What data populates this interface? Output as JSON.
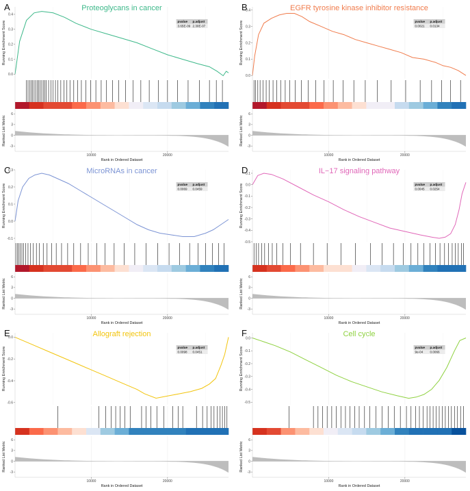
{
  "common": {
    "es_ylabel": "Running Enrichment Score",
    "metric_ylabel": "Ranked List Metric",
    "xlabel": "Rank in Ordered Dataset",
    "x_ticks": [
      "10000",
      "20000"
    ],
    "metric_ticks": [
      "6",
      "3",
      "0",
      "-3"
    ],
    "x_range": [
      0,
      28000
    ],
    "metric_range": [
      -4.5,
      7
    ],
    "stat_headers": [
      "pvalue",
      "p.adjust"
    ],
    "colors": {
      "red_dark": "#b2182b",
      "red": "#e34a33",
      "salmon": "#fc9272",
      "light": "#fde0d2",
      "pale_blue": "#dbe6f4",
      "blue_light": "#9ecae1",
      "blue": "#3182bd",
      "blue_dark": "#08519c",
      "metric_fill": "#bdbdbd"
    }
  },
  "chart_data": [
    {
      "type": "line",
      "letter": "A",
      "title": "Proteoglycans in cancer",
      "color": "#3cb889",
      "pvalue": "3.65E-09",
      "p_adjust": "2.30E-07",
      "ylim": [
        -0.03,
        0.45
      ],
      "y_ticks": [
        0.0,
        0.1,
        0.2,
        0.3,
        0.4
      ],
      "y_tick_labels": [
        "0.0",
        "0.1",
        "0.2",
        "0.3",
        "0.4"
      ],
      "x": [
        0,
        600,
        1500,
        2500,
        3500,
        5000,
        6500,
        8000,
        10000,
        12000,
        14000,
        16000,
        18000,
        20000,
        22000,
        24000,
        25500,
        26500,
        27300,
        27700,
        28000
      ],
      "y": [
        0.0,
        0.22,
        0.36,
        0.41,
        0.42,
        0.41,
        0.38,
        0.34,
        0.3,
        0.27,
        0.24,
        0.21,
        0.17,
        0.13,
        0.1,
        0.07,
        0.05,
        0.02,
        -0.01,
        0.02,
        0.01
      ],
      "heat": [
        "#b2182b",
        "#d6321f",
        "#e34a33",
        "#e34a33",
        "#fb6a4a",
        "#fc9272",
        "#fdbba0",
        "#fde0d2",
        "#f1eef6",
        "#dbe6f4",
        "#c6dbef",
        "#9ecae1",
        "#6baed6",
        "#3182bd",
        "#2171b5"
      ],
      "hits": [
        1500,
        1700,
        1900,
        2100,
        2300,
        2500,
        2700,
        2900,
        3100,
        3300,
        3500,
        3700,
        3900,
        4100,
        4400,
        4700,
        5000,
        5300,
        5600,
        6000,
        6400,
        6800,
        7200,
        7700,
        8200,
        8700,
        9300,
        9900,
        10600,
        11300,
        12000,
        12800,
        13600,
        14500,
        15500,
        16500,
        17600,
        18800,
        20000,
        21300,
        22700,
        24200,
        25500,
        26400,
        27200
      ]
    },
    {
      "type": "line",
      "letter": "B",
      "title": "EGFR tyrosine kinase inhibitor resistance",
      "color": "#f07b4b",
      "pvalue": "0.0021",
      "p_adjust": "0.0134",
      "ylim": [
        -0.02,
        0.42
      ],
      "y_ticks": [
        0.0,
        0.1,
        0.2,
        0.3,
        0.4
      ],
      "y_tick_labels": [
        "0.0",
        "0.1",
        "0.2",
        "0.3",
        "0.4"
      ],
      "x": [
        0,
        300,
        800,
        1500,
        2500,
        3500,
        4500,
        5500,
        6500,
        7500,
        9000,
        10500,
        12000,
        13500,
        15000,
        16500,
        18000,
        19500,
        21000,
        22500,
        24000,
        25000,
        26000,
        27000,
        28000
      ],
      "y": [
        0.0,
        0.12,
        0.25,
        0.32,
        0.35,
        0.37,
        0.38,
        0.38,
        0.36,
        0.33,
        0.3,
        0.27,
        0.25,
        0.22,
        0.2,
        0.18,
        0.16,
        0.14,
        0.11,
        0.1,
        0.08,
        0.06,
        0.05,
        0.03,
        0.0
      ],
      "heat": [
        "#b2182b",
        "#d6321f",
        "#e34a33",
        "#e34a33",
        "#fb6a4a",
        "#fc9272",
        "#fdbba0",
        "#fde0d2",
        "#f1eef6",
        "#f1eef6",
        "#c6dbef",
        "#9ecae1",
        "#6baed6",
        "#3182bd",
        "#2171b5"
      ],
      "hits": [
        200,
        400,
        700,
        1000,
        1400,
        1800,
        2200,
        2700,
        3200,
        3700,
        4300,
        4900,
        5600,
        6400,
        7300,
        8300,
        9400,
        10600,
        11900,
        13300,
        14800,
        16400,
        18200,
        20100,
        22000,
        23500,
        24800,
        26000,
        27300
      ]
    },
    {
      "type": "line",
      "letter": "C",
      "title": "MicroRNAs in cancer",
      "color": "#7b93d4",
      "pvalue": "0.0069",
      "p_adjust": "0.0459",
      "ylim": [
        -0.12,
        0.3
      ],
      "y_ticks": [
        -0.1,
        0.0,
        0.1,
        0.2,
        0.3
      ],
      "y_tick_labels": [
        "-0.1",
        "0.0",
        "0.1",
        "0.2",
        "0.3"
      ],
      "x": [
        0,
        400,
        1000,
        1800,
        2600,
        3500,
        4500,
        5500,
        7000,
        8500,
        10000,
        11500,
        13000,
        14500,
        16000,
        17500,
        19000,
        20500,
        22000,
        23500,
        25000,
        26000,
        27000,
        28000
      ],
      "y": [
        0.0,
        0.12,
        0.2,
        0.25,
        0.27,
        0.28,
        0.27,
        0.25,
        0.22,
        0.18,
        0.14,
        0.1,
        0.06,
        0.02,
        -0.02,
        -0.05,
        -0.07,
        -0.08,
        -0.09,
        -0.09,
        -0.07,
        -0.05,
        -0.02,
        0.01
      ],
      "heat": [
        "#b2182b",
        "#d6321f",
        "#e34a33",
        "#e34a33",
        "#fb6a4a",
        "#fc9272",
        "#fdbba0",
        "#fde0d2",
        "#f1eef6",
        "#dbe6f4",
        "#c6dbef",
        "#9ecae1",
        "#6baed6",
        "#3182bd",
        "#2171b5"
      ],
      "hits": [
        100,
        300,
        500,
        700,
        900,
        1100,
        1400,
        1700,
        2000,
        2400,
        2800,
        3200,
        3700,
        4200,
        4800,
        5400,
        6100,
        6900,
        7700,
        8600,
        9600,
        10700,
        11800,
        13000,
        14300,
        15700,
        17200,
        18700,
        20200,
        21600,
        22900,
        24000,
        25000,
        25900,
        26700,
        27400
      ]
    },
    {
      "type": "line",
      "letter": "D",
      "title": "IL−17 signaling pathway",
      "color": "#e066b8",
      "pvalue": "0.0045",
      "p_adjust": "0.0254",
      "ylim": [
        -0.5,
        0.13
      ],
      "y_ticks": [
        -0.5,
        -0.4,
        -0.3,
        -0.2,
        -0.1,
        0.0,
        0.1
      ],
      "y_tick_labels": [
        "-0.5",
        "-0.4",
        "-0.3",
        "-0.2",
        "-0.1",
        "0.0",
        "0.1"
      ],
      "x": [
        0,
        700,
        1500,
        2500,
        4000,
        6000,
        8000,
        10000,
        12000,
        14000,
        16000,
        18000,
        20000,
        22000,
        23500,
        24500,
        25300,
        26000,
        26600,
        27100,
        27500,
        28000
      ],
      "y": [
        0.0,
        0.08,
        0.1,
        0.09,
        0.05,
        -0.02,
        -0.09,
        -0.15,
        -0.22,
        -0.28,
        -0.33,
        -0.38,
        -0.41,
        -0.44,
        -0.46,
        -0.47,
        -0.46,
        -0.43,
        -0.35,
        -0.22,
        -0.08,
        0.02
      ],
      "heat": [
        "#d6321f",
        "#e34a33",
        "#fb6a4a",
        "#fc9272",
        "#fdbba0",
        "#fde0d2",
        "#fde0d2",
        "#f1eef6",
        "#dbe6f4",
        "#c6dbef",
        "#9ecae1",
        "#6baed6",
        "#3182bd",
        "#2171b5",
        "#2171b5"
      ],
      "hits": [
        200,
        500,
        800,
        1200,
        1600,
        2100,
        2600,
        3200,
        4000,
        5000,
        6300,
        8000,
        9800,
        11600,
        13500,
        15500,
        17000,
        18500,
        19800,
        20800,
        21700,
        22500,
        23300,
        24000,
        24600,
        25200,
        25700,
        26200,
        26600,
        27000,
        27400,
        27700
      ]
    },
    {
      "type": "line",
      "letter": "E",
      "title": "Allograft rejection",
      "color": "#f2c40c",
      "pvalue": "0.0098",
      "p_adjust": "0.0451",
      "ylim": [
        -0.62,
        0.04
      ],
      "y_ticks": [
        -0.6,
        -0.4,
        -0.2,
        0.0
      ],
      "y_tick_labels": [
        "-0.6",
        "-0.4",
        "-0.2",
        "0.0"
      ],
      "x": [
        0,
        2000,
        4000,
        6000,
        8000,
        10000,
        12000,
        14000,
        16000,
        17000,
        18500,
        20000,
        21500,
        23000,
        24500,
        25500,
        26300,
        27000,
        27500,
        28000
      ],
      "y": [
        0.0,
        -0.06,
        -0.12,
        -0.18,
        -0.24,
        -0.3,
        -0.36,
        -0.42,
        -0.48,
        -0.52,
        -0.56,
        -0.54,
        -0.52,
        -0.5,
        -0.47,
        -0.43,
        -0.38,
        -0.26,
        -0.16,
        0.0
      ],
      "heat": [
        "#d6321f",
        "#fb6a4a",
        "#fc9272",
        "#fdbba0",
        "#fde0d2",
        "#dbe6f4",
        "#9ecae1",
        "#6baed6",
        "#3182bd",
        "#3182bd",
        "#3182bd",
        "#3182bd",
        "#2171b5",
        "#2171b5",
        "#2171b5"
      ],
      "hits": [
        5600,
        11000,
        11900,
        12600,
        13200,
        13800,
        14400,
        15100,
        16600,
        17200,
        17800,
        18600,
        19500,
        20700,
        21400,
        22000,
        23800,
        24600,
        25200,
        25700,
        26100,
        26500,
        26900,
        27200,
        27500,
        27800
      ]
    },
    {
      "type": "line",
      "letter": "F",
      "title": "Cell cycle",
      "color": "#8ed13f",
      "pvalue": "9e-04",
      "p_adjust": "0.0066",
      "ylim": [
        -0.52,
        0.04
      ],
      "y_ticks": [
        -0.5,
        -0.4,
        -0.3,
        -0.2,
        -0.1,
        0.0
      ],
      "y_tick_labels": [
        "-0.5",
        "-0.4",
        "-0.3",
        "-0.2",
        "-0.1",
        "0.0"
      ],
      "x": [
        0,
        1500,
        3000,
        5000,
        7000,
        9000,
        11000,
        13000,
        15000,
        17000,
        19000,
        20500,
        21500,
        22500,
        23500,
        24500,
        25500,
        26500,
        27200,
        28000
      ],
      "y": [
        0.0,
        -0.03,
        -0.06,
        -0.11,
        -0.17,
        -0.23,
        -0.29,
        -0.34,
        -0.38,
        -0.42,
        -0.45,
        -0.47,
        -0.46,
        -0.44,
        -0.4,
        -0.33,
        -0.23,
        -0.1,
        -0.02,
        0.0
      ],
      "heat": [
        "#d6321f",
        "#e34a33",
        "#fc9272",
        "#fdbba0",
        "#fde0d2",
        "#f1eef6",
        "#dbe6f4",
        "#c6dbef",
        "#9ecae1",
        "#6baed6",
        "#3182bd",
        "#2171b5",
        "#2171b5",
        "#2171b5",
        "#08519c"
      ],
      "hits": [
        4800,
        8000,
        8600,
        9200,
        9800,
        10400,
        11000,
        11600,
        12200,
        12800,
        13400,
        14000,
        14700,
        15400,
        16200,
        17000,
        17800,
        18600,
        19400,
        20200,
        20800,
        21400,
        21900,
        22400,
        22900,
        23300,
        23700,
        24100,
        24500,
        24900,
        25300,
        25700,
        26100,
        26500,
        26900,
        27300,
        27700
      ]
    }
  ]
}
